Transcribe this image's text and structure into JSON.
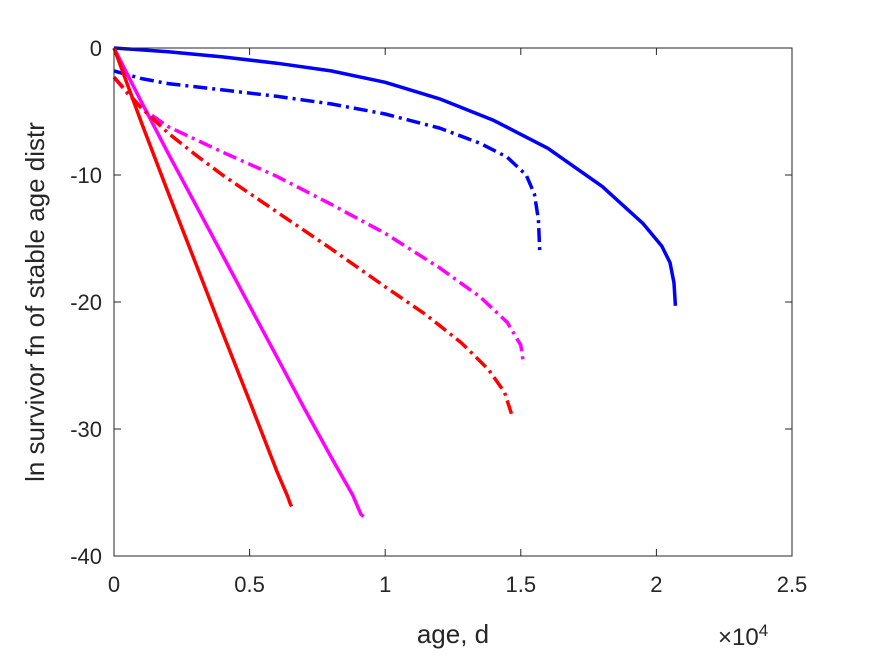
{
  "chart_data": {
    "type": "line",
    "xlabel": "age, d",
    "ylabel": "ln survivor fn of stable age distr",
    "x_multiplier_label": "×10",
    "x_multiplier_exp": "4",
    "xlim": [
      0,
      25000
    ],
    "ylim": [
      -40,
      0
    ],
    "xticks": [
      0,
      5000,
      10000,
      15000,
      20000,
      25000
    ],
    "xtick_labels": [
      "0",
      "0.5",
      "1",
      "1.5",
      "2",
      "2.5"
    ],
    "yticks": [
      0,
      -10,
      -20,
      -30,
      -40
    ],
    "ytick_labels": [
      "0",
      "-10",
      "-20",
      "-30",
      "-40"
    ],
    "grid": false,
    "legend": "none",
    "series": [
      {
        "color": "#0000ff",
        "style": "solid",
        "x": [
          0,
          2000,
          4000,
          6000,
          8000,
          10000,
          12000,
          14000,
          16000,
          18000,
          19500,
          20200,
          20500,
          20650,
          20700
        ],
        "y": [
          0,
          -0.3,
          -0.7,
          -1.2,
          -1.8,
          -2.7,
          -4.0,
          -5.7,
          -7.9,
          -10.9,
          -13.8,
          -15.6,
          -16.9,
          -18.5,
          -20.3
        ]
      },
      {
        "color": "#0000ff",
        "style": "dashdot",
        "x": [
          0,
          500,
          1000,
          2000,
          4000,
          6000,
          8000,
          10000,
          12000,
          13500,
          14500,
          15200,
          15500,
          15650,
          15700
        ],
        "y": [
          -1.8,
          -2.1,
          -2.4,
          -2.8,
          -3.3,
          -3.8,
          -4.4,
          -5.2,
          -6.3,
          -7.5,
          -8.6,
          -10.0,
          -11.5,
          -13.5,
          -16.1
        ]
      },
      {
        "color": "#ff00ff",
        "style": "solid",
        "x": [
          0,
          1000,
          2000,
          3000,
          4000,
          5000,
          6000,
          7000,
          8000,
          8800,
          9100,
          9200
        ],
        "y": [
          0,
          -4.2,
          -8.3,
          -12.3,
          -16.3,
          -20.3,
          -24.3,
          -28.3,
          -32.2,
          -35.2,
          -36.7,
          -36.9
        ]
      },
      {
        "color": "#ff00ff",
        "style": "dashdot",
        "x": [
          0,
          500,
          1000,
          2000,
          3000,
          4000,
          6000,
          8000,
          10000,
          12000,
          13500,
          14500,
          15000,
          15100
        ],
        "y": [
          -2.3,
          -3.6,
          -4.7,
          -6.2,
          -7.2,
          -8.2,
          -10.1,
          -12.3,
          -14.6,
          -17.3,
          -19.6,
          -21.6,
          -23.4,
          -24.9
        ]
      },
      {
        "color": "#ff0000",
        "style": "solid",
        "x": [
          0,
          1000,
          2000,
          3000,
          4000,
          5000,
          6000,
          6400,
          6500,
          6550
        ],
        "y": [
          0,
          -5.8,
          -11.4,
          -16.9,
          -22.4,
          -27.8,
          -33.3,
          -35.3,
          -35.9,
          -36.1
        ]
      },
      {
        "color": "#ff0000",
        "style": "dashdot",
        "x": [
          0,
          500,
          1000,
          2000,
          3000,
          4000,
          6000,
          8000,
          10000,
          11500,
          12800,
          13800,
          14400,
          14700
        ],
        "y": [
          -2.3,
          -3.5,
          -4.7,
          -6.7,
          -8.4,
          -10.0,
          -12.9,
          -15.8,
          -18.8,
          -21.0,
          -23.2,
          -25.3,
          -27.1,
          -29.1
        ]
      }
    ]
  }
}
